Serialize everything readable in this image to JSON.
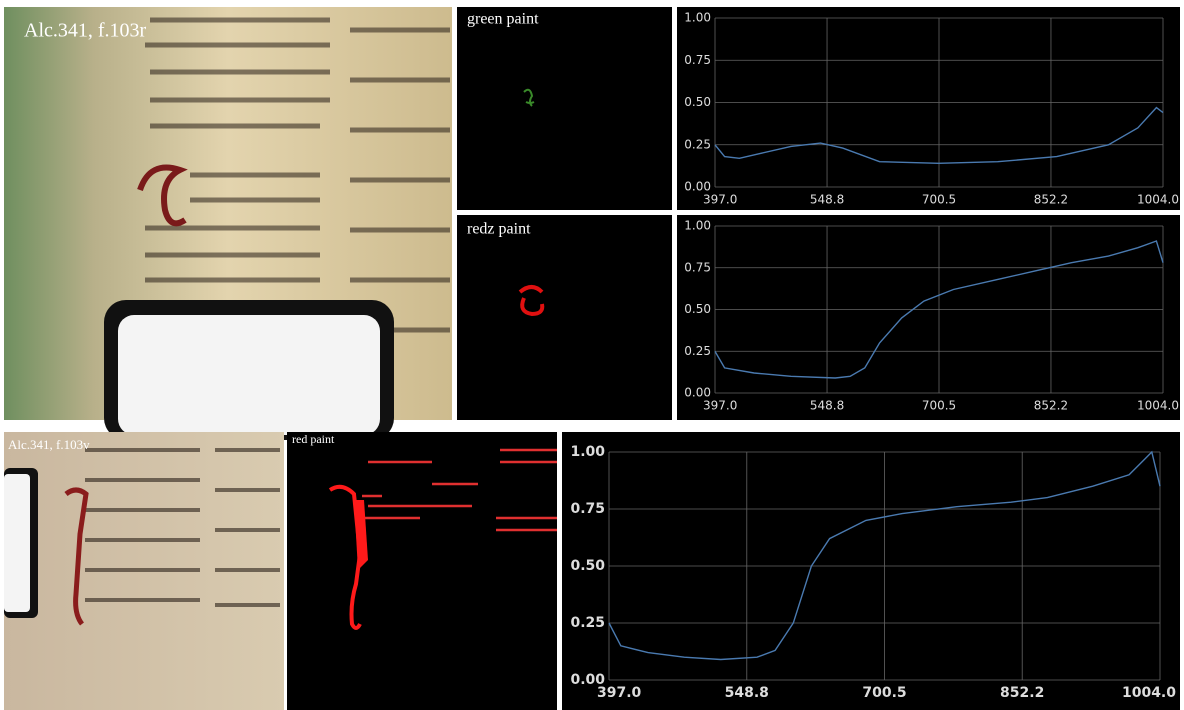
{
  "photos": [
    {
      "label": "Alc.341, f.103r"
    },
    {
      "label": "Alc.341, f.103v"
    }
  ],
  "chart_data": [
    {
      "type": "line",
      "title": "green paint",
      "x": [
        397,
        410,
        430,
        460,
        500,
        540,
        570,
        620,
        700,
        780,
        860,
        930,
        970,
        995,
        1004
      ],
      "series": [
        {
          "name": "green paint",
          "color": "#4a7ab0",
          "values": [
            0.25,
            0.18,
            0.17,
            0.2,
            0.24,
            0.26,
            0.23,
            0.15,
            0.14,
            0.15,
            0.18,
            0.25,
            0.35,
            0.47,
            0.44
          ]
        }
      ],
      "xlim": [
        397,
        1004
      ],
      "ylim": [
        0,
        1
      ],
      "xticks": [
        {
          "value": 397,
          "label": "397.0"
        },
        548.8,
        700.5,
        852.2,
        {
          "value": 1004,
          "label": "1004.0"
        }
      ],
      "yticks": [
        {
          "value": 0,
          "label": "0.00"
        },
        {
          "value": 0.25,
          "label": "0.25"
        },
        {
          "value": 0.5,
          "label": "0.50"
        },
        {
          "value": 0.75,
          "label": "0.75"
        },
        {
          "value": 1,
          "label": "1.00"
        }
      ],
      "grid": true
    },
    {
      "type": "line",
      "title": "redz paint",
      "x": [
        397,
        410,
        450,
        500,
        560,
        580,
        600,
        620,
        650,
        680,
        720,
        780,
        830,
        880,
        930,
        970,
        995,
        1004
      ],
      "series": [
        {
          "name": "redz paint",
          "color": "#4a7ab0",
          "values": [
            0.25,
            0.15,
            0.12,
            0.1,
            0.09,
            0.1,
            0.15,
            0.3,
            0.45,
            0.55,
            0.62,
            0.68,
            0.73,
            0.78,
            0.82,
            0.87,
            0.91,
            0.78
          ]
        }
      ],
      "xlim": [
        397,
        1004
      ],
      "ylim": [
        0,
        1
      ],
      "xticks": [
        {
          "value": 397,
          "label": "397.0"
        },
        548.8,
        700.5,
        852.2,
        {
          "value": 1004,
          "label": "1004.0"
        }
      ],
      "yticks": [
        {
          "value": 0,
          "label": "0.00"
        },
        {
          "value": 0.25,
          "label": "0.25"
        },
        {
          "value": 0.5,
          "label": "0.50"
        },
        {
          "value": 0.75,
          "label": "0.75"
        },
        {
          "value": 1,
          "label": "1.00"
        }
      ],
      "grid": true
    },
    {
      "type": "line",
      "title": "red paint",
      "x": [
        397,
        410,
        440,
        480,
        520,
        560,
        580,
        600,
        620,
        640,
        680,
        720,
        780,
        840,
        880,
        930,
        970,
        995,
        1004
      ],
      "series": [
        {
          "name": "red paint",
          "color": "#4a7ab0",
          "values": [
            0.25,
            0.15,
            0.12,
            0.1,
            0.09,
            0.1,
            0.13,
            0.25,
            0.5,
            0.62,
            0.7,
            0.73,
            0.76,
            0.78,
            0.8,
            0.85,
            0.9,
            1.0,
            0.85
          ]
        }
      ],
      "xlim": [
        397,
        1004
      ],
      "ylim": [
        0,
        1
      ],
      "xticks": [
        {
          "value": 397,
          "label": "397.0"
        },
        548.8,
        700.5,
        852.2,
        {
          "value": 1004,
          "label": "1004.0"
        }
      ],
      "yticks": [
        {
          "value": 0,
          "label": "0.00"
        },
        {
          "value": 0.25,
          "label": "0.25"
        },
        {
          "value": 0.5,
          "label": "0.50"
        },
        {
          "value": 0.75,
          "label": "0.75"
        },
        {
          "value": 1,
          "label": "1.00"
        }
      ],
      "grid": true
    }
  ]
}
